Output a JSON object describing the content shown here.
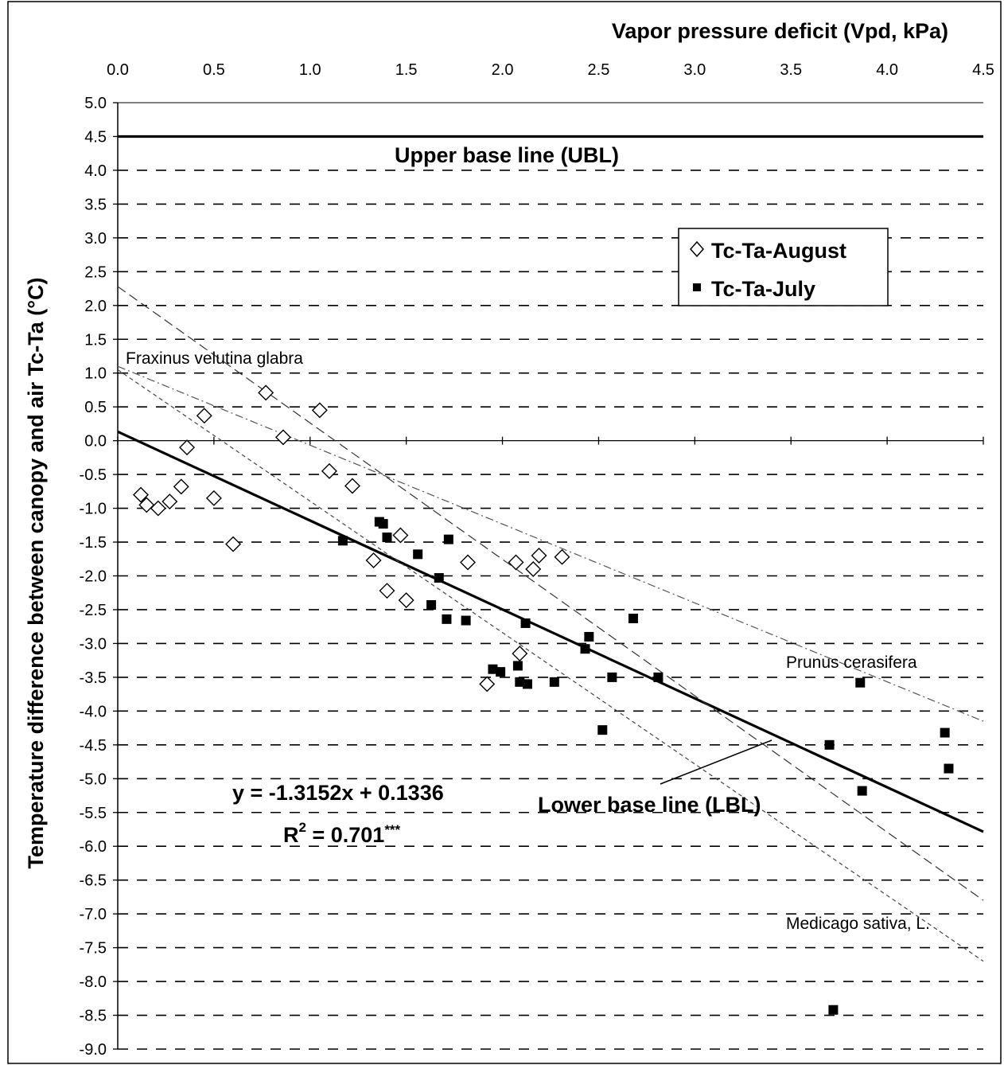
{
  "chart_data": {
    "type": "scatter",
    "xlabel": "Vapor pressure deficit (Vpd, kPa)",
    "ylabel": "Temperature difference between canopy and air Tc-Ta (°C)",
    "xlim": [
      0,
      4.5
    ],
    "ylim": [
      -9.0,
      5.0
    ],
    "x_axis_position": "top",
    "x_ticks": [
      0.0,
      0.5,
      1.0,
      1.5,
      2.0,
      2.5,
      3.0,
      3.5,
      4.0,
      4.5
    ],
    "y_ticks": [
      5.0,
      4.5,
      4.0,
      3.5,
      3.0,
      2.5,
      2.0,
      1.5,
      1.0,
      0.5,
      0.0,
      -0.5,
      -1.0,
      -1.5,
      -2.0,
      -2.5,
      -3.0,
      -3.5,
      -4.0,
      -4.5,
      -5.0,
      -5.5,
      -6.0,
      -6.5,
      -7.0,
      -7.5,
      -8.0,
      -8.5,
      -9.0
    ],
    "grid": "horizontal dashed",
    "legend_position": "top-right",
    "series": [
      {
        "name": "Tc-Ta-August",
        "marker": "open-diamond",
        "points": [
          [
            0.12,
            -0.8
          ],
          [
            0.15,
            -0.95
          ],
          [
            0.21,
            -1.0
          ],
          [
            0.27,
            -0.9
          ],
          [
            0.33,
            -0.68
          ],
          [
            0.36,
            -0.1
          ],
          [
            0.45,
            0.37
          ],
          [
            0.5,
            -0.85
          ],
          [
            0.6,
            -1.53
          ],
          [
            0.77,
            0.71
          ],
          [
            0.86,
            0.05
          ],
          [
            1.05,
            0.45
          ],
          [
            1.1,
            -0.45
          ],
          [
            1.22,
            -0.67
          ],
          [
            1.33,
            -1.77
          ],
          [
            1.4,
            -2.22
          ],
          [
            1.47,
            -1.4
          ],
          [
            1.5,
            -2.36
          ],
          [
            1.82,
            -1.8
          ],
          [
            1.92,
            -3.6
          ],
          [
            2.07,
            -1.8
          ],
          [
            2.09,
            -3.15
          ],
          [
            2.16,
            -1.9
          ],
          [
            2.19,
            -1.7
          ],
          [
            2.31,
            -1.72
          ]
        ]
      },
      {
        "name": "Tc-Ta-July",
        "marker": "filled-square",
        "points": [
          [
            1.17,
            -1.48
          ],
          [
            1.36,
            -1.2
          ],
          [
            1.38,
            -1.23
          ],
          [
            1.4,
            -1.43
          ],
          [
            1.56,
            -1.68
          ],
          [
            1.63,
            -2.43
          ],
          [
            1.67,
            -2.03
          ],
          [
            1.71,
            -2.64
          ],
          [
            1.72,
            -1.46
          ],
          [
            1.81,
            -2.66
          ],
          [
            1.95,
            -3.38
          ],
          [
            1.99,
            -3.42
          ],
          [
            2.08,
            -3.33
          ],
          [
            2.09,
            -3.57
          ],
          [
            2.12,
            -2.7
          ],
          [
            2.13,
            -3.6
          ],
          [
            2.27,
            -3.57
          ],
          [
            2.43,
            -3.08
          ],
          [
            2.45,
            -2.9
          ],
          [
            2.52,
            -4.28
          ],
          [
            2.57,
            -3.5
          ],
          [
            2.68,
            -2.63
          ],
          [
            2.81,
            -3.5
          ],
          [
            3.7,
            -4.5
          ],
          [
            3.72,
            -8.42
          ],
          [
            3.86,
            -3.58
          ],
          [
            3.87,
            -5.18
          ],
          [
            4.3,
            -4.32
          ],
          [
            4.32,
            -4.85
          ]
        ]
      }
    ],
    "lines": [
      {
        "name": "Upper base line (UBL)",
        "style": "solid-bold",
        "y": 4.5
      },
      {
        "name": "Lower base line (LBL)",
        "style": "solid-bold",
        "slope": -1.3152,
        "intercept": 0.1336
      },
      {
        "name": "Fraxinus velutina glabra",
        "style": "dash-dot",
        "x0": 0.0,
        "y0": 1.1,
        "x1": 4.5,
        "y1": -4.15
      },
      {
        "name": "Prunus cerasifera",
        "style": "dashed",
        "x0": 0.0,
        "y0": 2.28,
        "x1": 4.5,
        "y1": -6.8
      },
      {
        "name": "Medicago sativa, L.",
        "style": "dotted-dashed",
        "x0": 0.0,
        "y0": 1.05,
        "x1": 4.5,
        "y1": -7.7
      }
    ],
    "annotations": {
      "ubl_label": "Upper base line (UBL)",
      "lbl_label": "Lower base line (LBL)",
      "equation": "y = -1.3152x + 0.1336",
      "r2_prefix": "R",
      "r2_sup": "2",
      "r2_value": " = 0.701",
      "r2_stars": "***",
      "fraxinus": "Fraxinus velutina glabra",
      "prunus": "Prunus cerasifera",
      "medicago": "Medicago sativa, L."
    }
  }
}
